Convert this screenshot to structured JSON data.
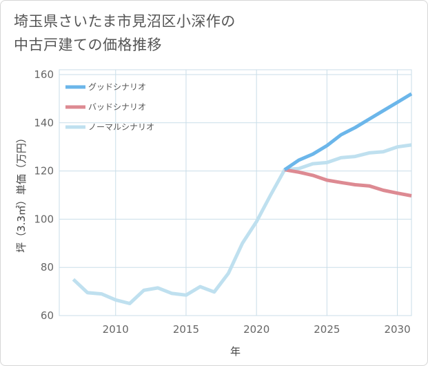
{
  "title_line1": "埼玉県さいたま市見沼区小深作の",
  "title_line2": "中古戸建ての価格推移",
  "chart_data": {
    "type": "line",
    "xlabel": "年",
    "ylabel": "坪（3.3㎡）単価（万円）",
    "xlim": [
      2006,
      2031
    ],
    "ylim": [
      60,
      162
    ],
    "xticks": [
      2010,
      2015,
      2020,
      2025,
      2030
    ],
    "yticks": [
      60,
      80,
      100,
      120,
      140,
      160
    ],
    "grid": true,
    "legend_position": "top-left",
    "series": [
      {
        "name": "グッドシナリオ",
        "color": "#6bb6ea",
        "x": [
          2022,
          2023,
          2024,
          2025,
          2026,
          2027,
          2028,
          2029,
          2030,
          2031
        ],
        "y": [
          120.5,
          124.5,
          127,
          130.5,
          135,
          138,
          141.5,
          145,
          148.5,
          152
        ]
      },
      {
        "name": "バッドシナリオ",
        "color": "#dd8a92",
        "x": [
          2022,
          2023,
          2024,
          2025,
          2026,
          2027,
          2028,
          2029,
          2030,
          2031
        ],
        "y": [
          120.5,
          119.5,
          118.2,
          116.2,
          115.2,
          114.3,
          113.8,
          112,
          110.8,
          109.7
        ]
      },
      {
        "name": "ノーマルシナリオ",
        "color": "#bfe0ef",
        "x": [
          2007,
          2008,
          2009,
          2010,
          2011,
          2012,
          2013,
          2014,
          2015,
          2016,
          2017,
          2018,
          2019,
          2020,
          2021,
          2022,
          2023,
          2024,
          2025,
          2026,
          2027,
          2028,
          2029,
          2030,
          2031
        ],
        "y": [
          75,
          69.5,
          69,
          66.5,
          65,
          70.5,
          71.5,
          69.2,
          68.5,
          72,
          69.8,
          77.5,
          90,
          99,
          110,
          120.5,
          121,
          123,
          123.5,
          125.5,
          126,
          127.5,
          128,
          130,
          130.8
        ]
      }
    ]
  }
}
